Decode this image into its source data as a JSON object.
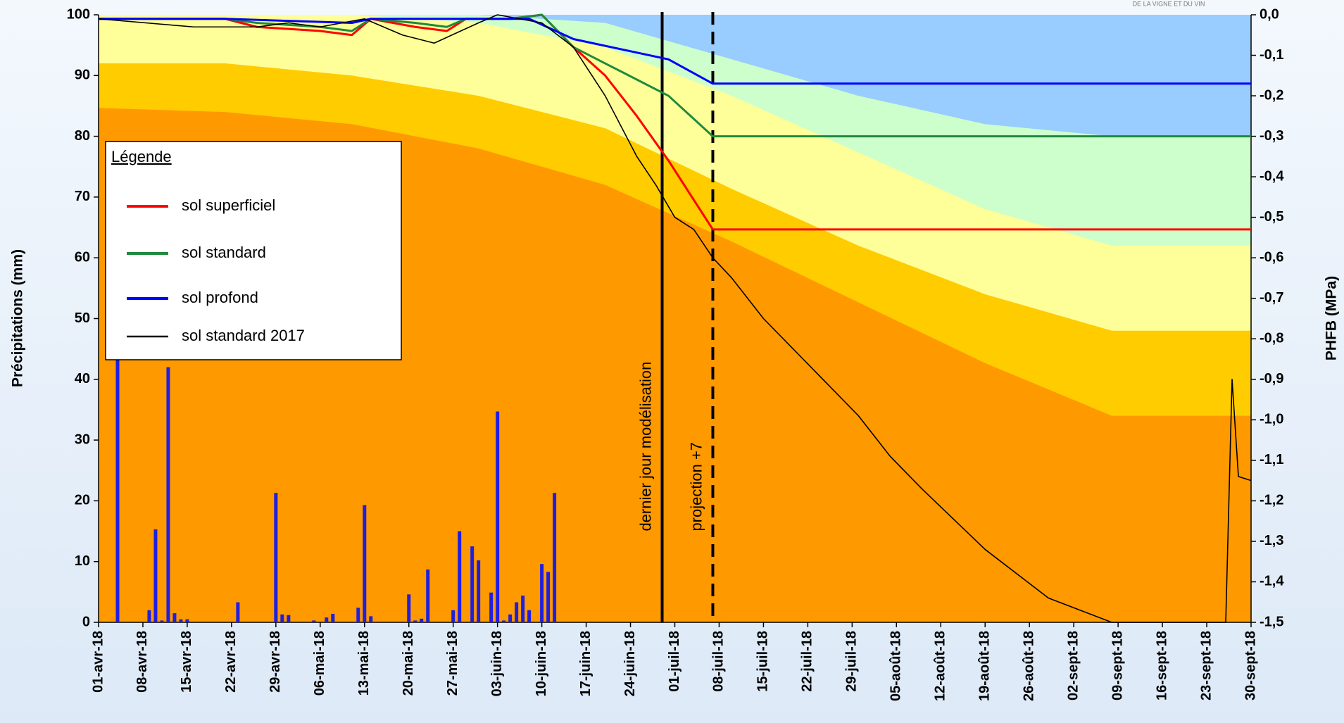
{
  "chart_data": {
    "type": "line",
    "watermark": "DE LA VIGNE ET DU VIN",
    "ylabel": "Précipitations (mm)",
    "y2label": "PHFB (MPa)",
    "ylim": [
      0,
      100
    ],
    "yticks": [
      0,
      10,
      20,
      30,
      40,
      50,
      60,
      70,
      80,
      90,
      100
    ],
    "y2lim": [
      -1.5,
      0
    ],
    "y2ticks": [
      {
        "value": 0,
        "label": "0,0"
      },
      {
        "value": -0.1,
        "label": "-0,1"
      },
      {
        "value": -0.2,
        "label": "-0,2"
      },
      {
        "value": -0.3,
        "label": "-0,3"
      },
      {
        "value": -0.4,
        "label": "-0,4"
      },
      {
        "value": -0.5,
        "label": "-0,5"
      },
      {
        "value": -0.6,
        "label": "-0,6"
      },
      {
        "value": -0.7,
        "label": "-0,7"
      },
      {
        "value": -0.8,
        "label": "-0,8"
      },
      {
        "value": -0.9,
        "label": "-0,9"
      },
      {
        "value": -1.0,
        "label": "-1,0"
      },
      {
        "value": -1.1,
        "label": "-1,1"
      },
      {
        "value": -1.2,
        "label": "-1,2"
      },
      {
        "value": -1.3,
        "label": "-1,3"
      },
      {
        "value": -1.4,
        "label": "-1,4"
      },
      {
        "value": -1.5,
        "label": "-1,5"
      }
    ],
    "xlim": [
      0,
      182
    ],
    "xticks": [
      {
        "value": 0,
        "label": "01-avr-18"
      },
      {
        "value": 7,
        "label": "08-avr-18"
      },
      {
        "value": 14,
        "label": "15-avr-18"
      },
      {
        "value": 21,
        "label": "22-avr-18"
      },
      {
        "value": 28,
        "label": "29-avr-18"
      },
      {
        "value": 35,
        "label": "06-mai-18"
      },
      {
        "value": 42,
        "label": "13-mai-18"
      },
      {
        "value": 49,
        "label": "20-mai-18"
      },
      {
        "value": 56,
        "label": "27-mai-18"
      },
      {
        "value": 63,
        "label": "03-juin-18"
      },
      {
        "value": 70,
        "label": "10-juin-18"
      },
      {
        "value": 77,
        "label": "17-juin-18"
      },
      {
        "value": 84,
        "label": "24-juin-18"
      },
      {
        "value": 91,
        "label": "01-juil-18"
      },
      {
        "value": 98,
        "label": "08-juil-18"
      },
      {
        "value": 105,
        "label": "15-juil-18"
      },
      {
        "value": 112,
        "label": "22-juil-18"
      },
      {
        "value": 119,
        "label": "29-juil-18"
      },
      {
        "value": 126,
        "label": "05-août-18"
      },
      {
        "value": 133,
        "label": "12-août-18"
      },
      {
        "value": 140,
        "label": "19-août-18"
      },
      {
        "value": 147,
        "label": "26-août-18"
      },
      {
        "value": 154,
        "label": "02-sept-18"
      },
      {
        "value": 161,
        "label": "09-sept-18"
      },
      {
        "value": 168,
        "label": "16-sept-18"
      },
      {
        "value": 175,
        "label": "23-sept-18"
      },
      {
        "value": 182,
        "label": "30-sept-18"
      }
    ],
    "band_base_color": "#ff9900",
    "band_x": [
      0,
      20,
      40,
      60,
      80,
      100,
      120,
      140,
      160,
      182
    ],
    "bands": [
      {
        "color": "#99ccff",
        "values": [
          0,
          0,
          0,
          0,
          -0.02,
          -0.11,
          -0.2,
          -0.27,
          -0.3,
          -0.3
        ]
      },
      {
        "color": "#ccffcc",
        "values": [
          0,
          0,
          0,
          -0.02,
          -0.08,
          -0.2,
          -0.34,
          -0.48,
          -0.57,
          -0.57
        ]
      },
      {
        "color": "#ffff99",
        "values": [
          -0.12,
          -0.12,
          -0.15,
          -0.2,
          -0.28,
          -0.43,
          -0.57,
          -0.69,
          -0.78,
          -0.78
        ]
      },
      {
        "color": "#ffcc00",
        "values": [
          -0.23,
          -0.24,
          -0.27,
          -0.33,
          -0.42,
          -0.56,
          -0.71,
          -0.86,
          -0.99,
          -0.99
        ]
      }
    ],
    "precipitation": {
      "color": "#1f1fe0",
      "x": [
        3,
        8,
        9,
        10,
        11,
        12,
        13,
        14,
        22,
        28,
        29,
        30,
        34,
        36,
        37,
        41,
        42,
        43,
        49,
        50,
        51,
        52,
        56,
        57,
        59,
        60,
        62,
        63,
        64,
        65,
        66,
        67,
        68,
        70,
        71,
        72
      ],
      "values": [
        44,
        2,
        15.3,
        0.3,
        42,
        1.5,
        0.5,
        0.5,
        3.3,
        21.3,
        1.3,
        1.2,
        0.3,
        0.8,
        1.4,
        2.4,
        19.3,
        1,
        4.6,
        0.3,
        0.6,
        8.7,
        2,
        15,
        12.5,
        10.2,
        4.9,
        34.7,
        0.3,
        1.3,
        3.3,
        4.4,
        2,
        9.6,
        8.3,
        21.3
      ]
    },
    "annotations": [
      {
        "text": "dernier jour modélisation",
        "x": 89,
        "style": "solid"
      },
      {
        "text": "projection +7",
        "x": 97,
        "style": "dashed"
      }
    ],
    "legend_title": "Légende",
    "legend": "upper left",
    "series": [
      {
        "name": "sol superficiel",
        "color": "#ff0000",
        "width": 3,
        "axis": "y2",
        "x": [
          0,
          20,
          25,
          35,
          40,
          43,
          50,
          55,
          58,
          65,
          70,
          75,
          80,
          85,
          90,
          97,
          182
        ],
        "values": [
          -0.01,
          -0.01,
          -0.03,
          -0.04,
          -0.05,
          -0.01,
          -0.03,
          -0.04,
          -0.01,
          -0.01,
          0,
          -0.08,
          -0.15,
          -0.25,
          -0.36,
          -0.53,
          -0.53
        ]
      },
      {
        "name": "sol standard",
        "color": "#1e8a3c",
        "width": 3,
        "axis": "y2",
        "x": [
          0,
          20,
          25,
          35,
          40,
          43,
          50,
          55,
          58,
          65,
          70,
          75,
          80,
          90,
          97,
          182
        ],
        "values": [
          -0.01,
          -0.01,
          -0.02,
          -0.03,
          -0.04,
          -0.01,
          -0.02,
          -0.03,
          -0.01,
          -0.01,
          0,
          -0.08,
          -0.12,
          -0.2,
          -0.3,
          -0.3
        ]
      },
      {
        "name": "sol profond",
        "color": "#0000ff",
        "width": 3,
        "axis": "y2",
        "x": [
          0,
          20,
          40,
          43,
          50,
          58,
          68,
          75,
          90,
          97,
          182
        ],
        "values": [
          -0.01,
          -0.01,
          -0.02,
          -0.01,
          -0.01,
          -0.01,
          -0.01,
          -0.06,
          -0.11,
          -0.17,
          -0.17
        ]
      },
      {
        "name": "sol standard 2017",
        "color": "#000000",
        "width": 1.6,
        "axis": "y2",
        "x": [
          0,
          15,
          25,
          30,
          35,
          42,
          48,
          53,
          60,
          63,
          70,
          75,
          80,
          85,
          88,
          91,
          94,
          97,
          100,
          105,
          110,
          120,
          125,
          130,
          140,
          150,
          160,
          178,
          179,
          180,
          182
        ],
        "values": [
          -0.01,
          -0.03,
          -0.03,
          -0.02,
          -0.03,
          -0.01,
          -0.05,
          -0.07,
          -0.02,
          0,
          -0.02,
          -0.08,
          -0.2,
          -0.35,
          -0.42,
          -0.5,
          -0.53,
          -0.6,
          -0.65,
          -0.75,
          -0.83,
          -0.99,
          -1.09,
          -1.17,
          -1.32,
          -1.44,
          -1.5,
          -1.5,
          -0.9,
          -1.14,
          -1.15
        ]
      }
    ]
  }
}
